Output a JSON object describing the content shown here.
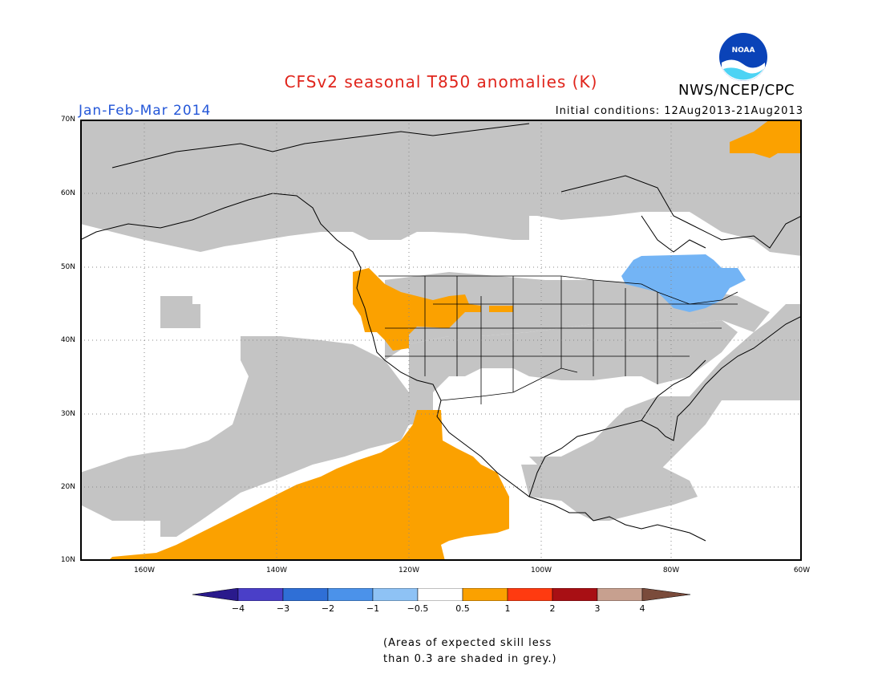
{
  "title": "CFSv2 seasonal T850 anomalies (K)",
  "period": "Jan-Feb-Mar 2014",
  "agency": "NWS/NCEP/CPC",
  "logo_text": "NOAA",
  "initial_conditions": "Initial conditions: 12Aug2013-21Aug2013",
  "lat_labels": [
    "70N",
    "60N",
    "50N",
    "40N",
    "30N",
    "20N",
    "10N"
  ],
  "lon_labels": [
    "160W",
    "140W",
    "120W",
    "100W",
    "80W",
    "60W"
  ],
  "colorbar": {
    "labels": [
      "−4",
      "−3",
      "−2",
      "−1",
      "−0.5",
      "0.5",
      "1",
      "2",
      "3",
      "4"
    ],
    "colors": [
      "#2a1a8c",
      "#4a3fc8",
      "#2f6fd6",
      "#4b92ea",
      "#8ec2f5",
      "#ffffff",
      "#fba100",
      "#ff3a10",
      "#a80f14",
      "#c7a08f",
      "#7a4b3b"
    ]
  },
  "skill_note_line1": "(Areas of expected skill less",
  "skill_note_line2": "than 0.3 are shaded in grey.)",
  "colors": {
    "grey": "#c4c4c4",
    "orange": "#fba100",
    "blue": "#73b4f5",
    "title_red": "#e0241b",
    "period_blue": "#2457d8"
  }
}
